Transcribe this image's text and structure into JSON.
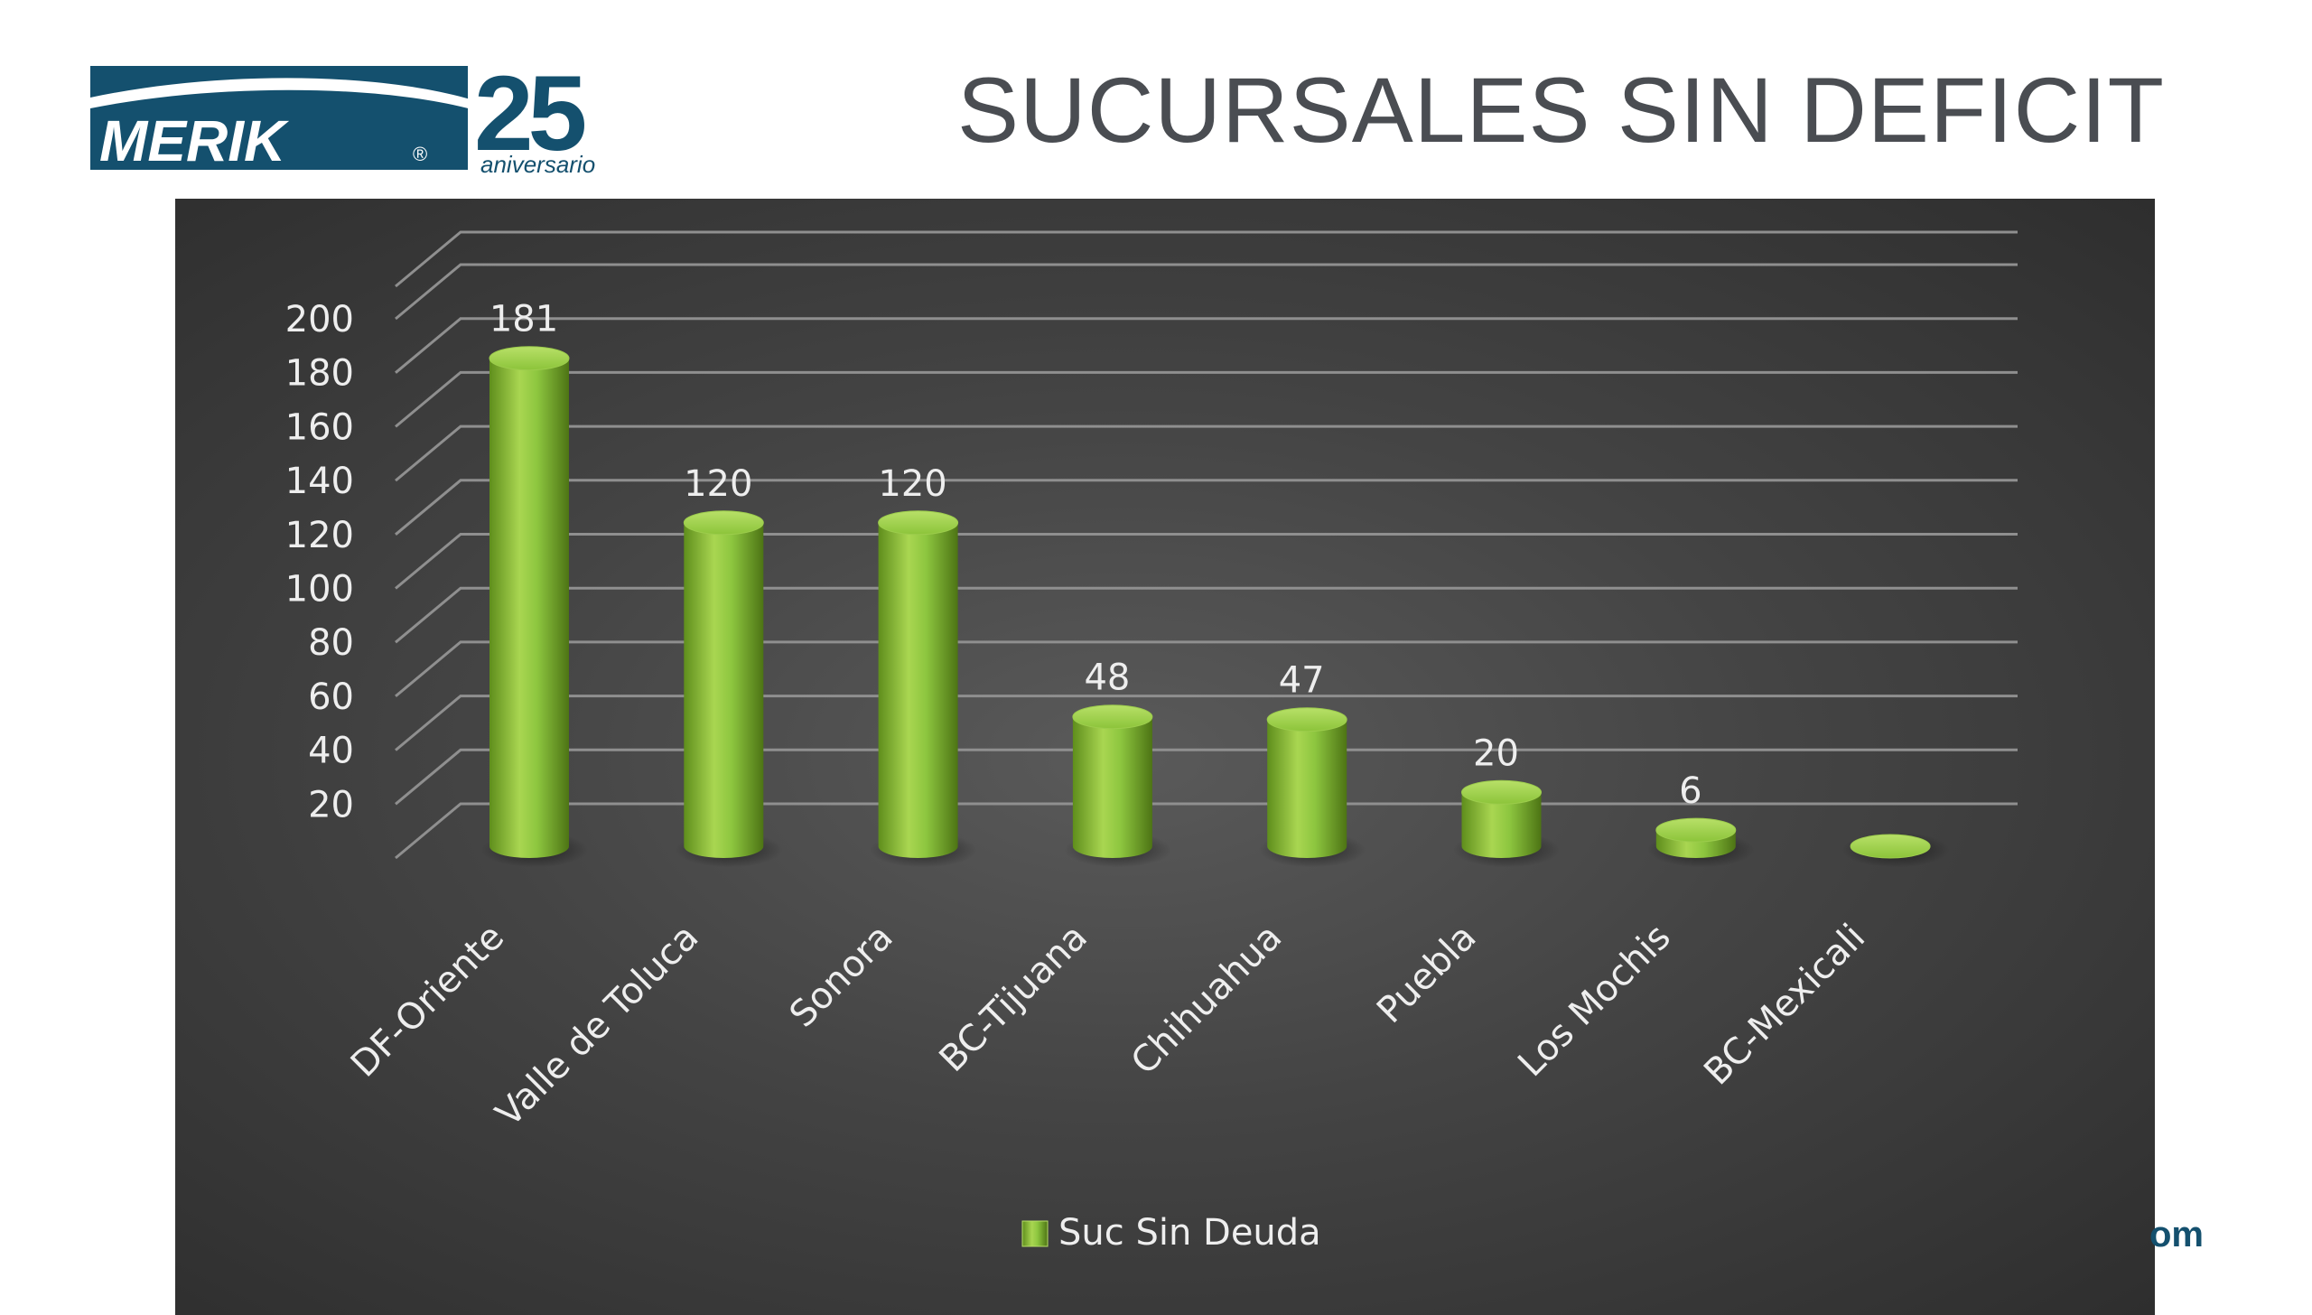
{
  "header": {
    "title": "SUCURSALES SIN DEFICIT",
    "logo": {
      "brand": "MERIK",
      "registered": "®",
      "years": "25",
      "tagline": "aniversario"
    }
  },
  "footer": {
    "fragment": "om"
  },
  "colors": {
    "brand_teal": "#14506e",
    "title_gray": "#4a4d52",
    "bar_green": "#8dc63f",
    "panel_bg": "#444444",
    "text_light": "#eeeeee"
  },
  "chart_data": {
    "type": "bar",
    "style": "3d-cylinder",
    "categories": [
      "DF-Oriente",
      "Valle de Toluca",
      "Sonora",
      "BC-Tijuana",
      "Chihuahua",
      "Puebla",
      "Los Mochis",
      "BC-Mexicali"
    ],
    "series": [
      {
        "name": "Suc Sin Deuda",
        "values": [
          181,
          120,
          120,
          48,
          47,
          20,
          6,
          0
        ]
      }
    ],
    "data_labels": [
      "181",
      "120",
      "120",
      "48",
      "47",
      "20",
      "6",
      ""
    ],
    "yticks": [
      20,
      40,
      60,
      80,
      100,
      120,
      140,
      160,
      180,
      200
    ],
    "ylim": [
      0,
      200
    ],
    "grid": true,
    "legend": "bottom-center"
  }
}
